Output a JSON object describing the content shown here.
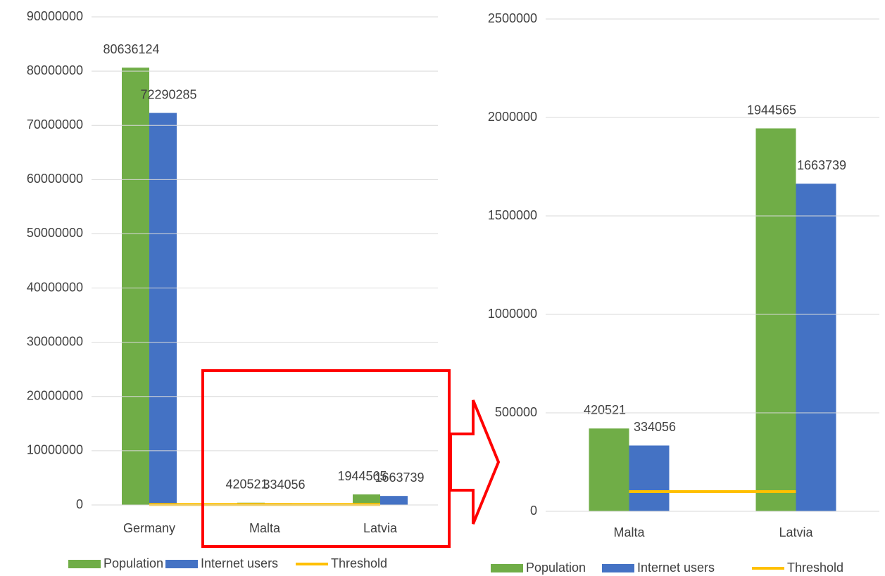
{
  "chart_data": [
    {
      "type": "bar",
      "categories": [
        "Germany",
        "Malta",
        "Latvia"
      ],
      "series": [
        {
          "name": "Population",
          "color": "#70ad47",
          "values": [
            80636124,
            420521,
            1944565
          ]
        },
        {
          "name": "Internet users",
          "color": "#4472c4",
          "values": [
            72290285,
            334056,
            1663739
          ]
        },
        {
          "name": "Threshold",
          "color": "#ffc000",
          "type": "line",
          "values": [
            100000,
            100000,
            100000
          ]
        }
      ],
      "ylim": [
        0,
        90000000
      ],
      "yticks": [
        0,
        10000000,
        20000000,
        30000000,
        40000000,
        50000000,
        60000000,
        70000000,
        80000000,
        90000000
      ],
      "grid": true,
      "legend": "bottom"
    },
    {
      "type": "bar",
      "categories": [
        "Malta",
        "Latvia"
      ],
      "series": [
        {
          "name": "Population",
          "color": "#70ad47",
          "values": [
            420521,
            1944565
          ]
        },
        {
          "name": "Internet users",
          "color": "#4472c4",
          "values": [
            334056,
            1663739
          ]
        },
        {
          "name": "Threshold",
          "color": "#ffc000",
          "type": "line",
          "values": [
            100000,
            100000
          ]
        }
      ],
      "ylim": [
        0,
        2500000
      ],
      "yticks": [
        0,
        500000,
        1000000,
        1500000,
        2000000,
        2500000
      ],
      "grid": true,
      "legend": "bottom"
    }
  ]
}
